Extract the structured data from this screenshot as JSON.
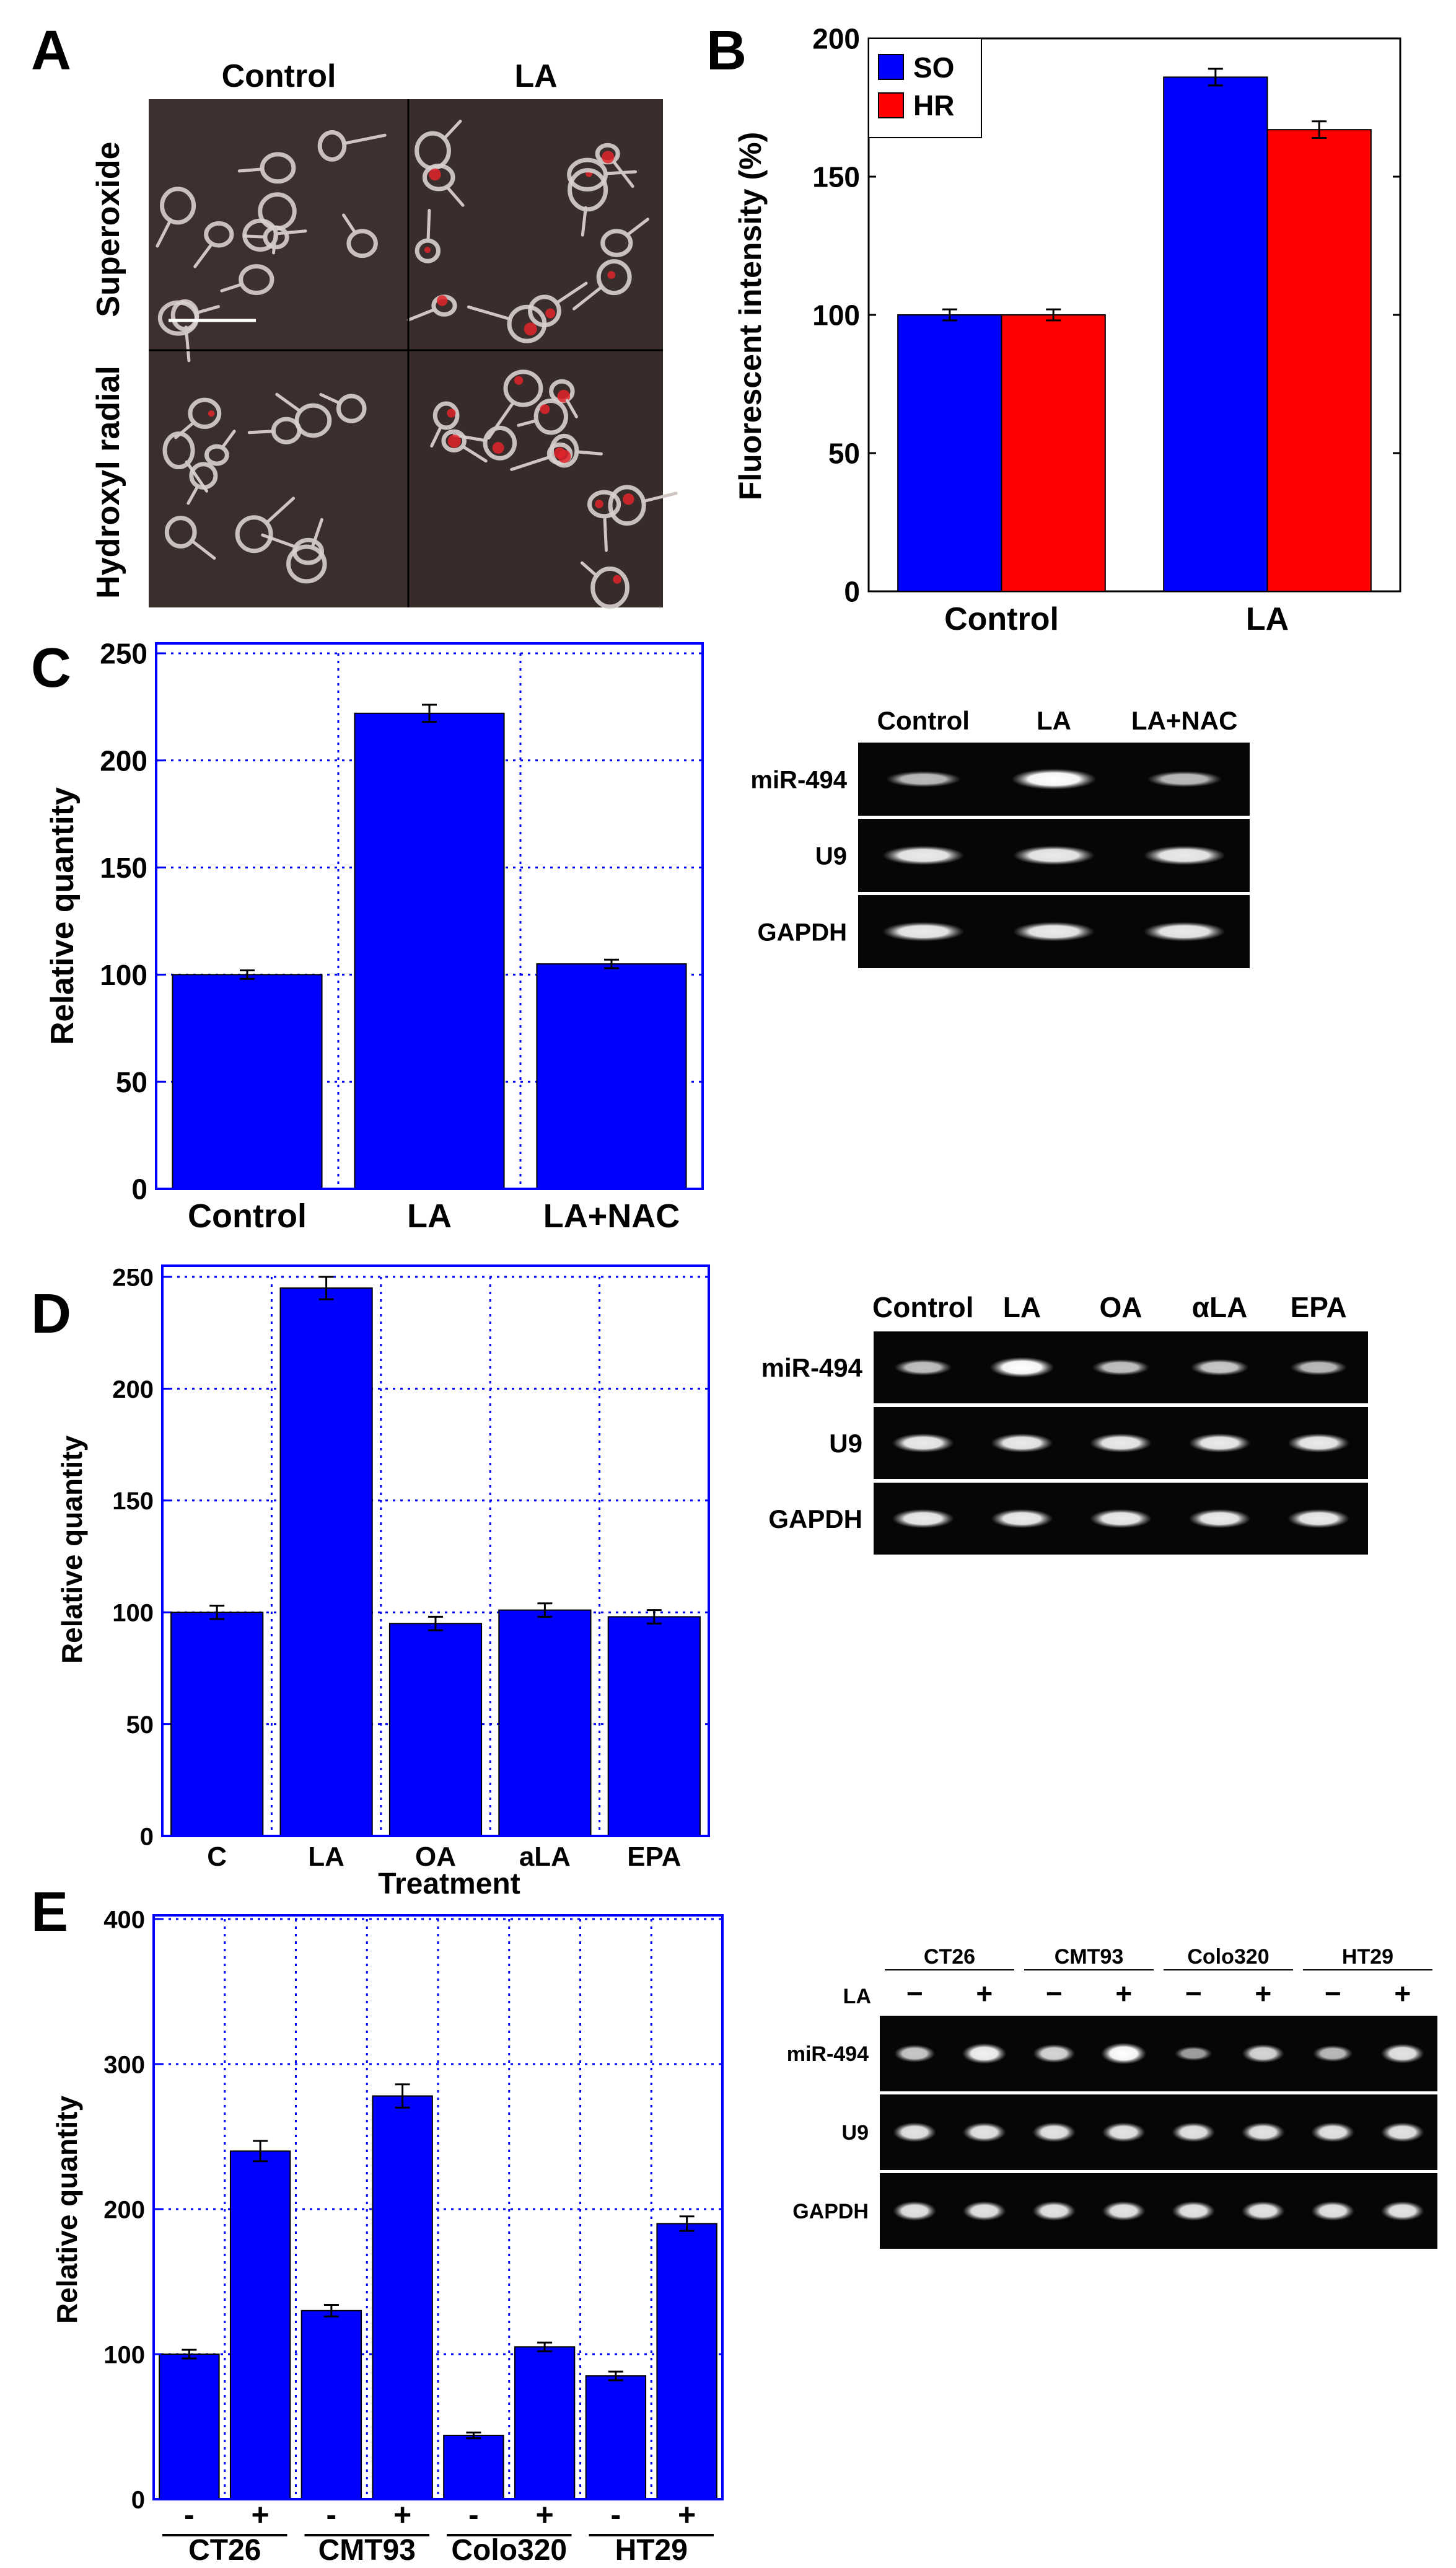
{
  "panel_letters": [
    "A",
    "B",
    "C",
    "D",
    "E"
  ],
  "panel_a": {
    "col_labels": [
      "Control",
      "LA"
    ],
    "row_labels": [
      "Superoxide",
      "Hydroxyl radial"
    ]
  },
  "chart_data": [
    {
      "panel": "B",
      "type": "bar",
      "title": "",
      "xlabel": "",
      "ylabel": "Fluorescent intensity (%)",
      "categories": [
        "Control",
        "LA"
      ],
      "series": [
        {
          "name": "SO",
          "color": "#0000FF",
          "values": [
            100,
            186
          ],
          "errors": [
            2,
            3
          ]
        },
        {
          "name": "HR",
          "color": "#FF0000",
          "values": [
            100,
            167
          ],
          "errors": [
            2,
            3
          ]
        }
      ],
      "ylim": [
        0,
        200
      ],
      "yticks": [
        0,
        50,
        100,
        150,
        200
      ],
      "grid": false,
      "legend": "top-left"
    },
    {
      "panel": "C",
      "type": "bar",
      "title": "",
      "xlabel": "",
      "ylabel": "Relative quantity",
      "categories": [
        "Control",
        "LA",
        "LA+NAC"
      ],
      "series": [
        {
          "name": "miR-494",
          "color": "#0000FF",
          "values": [
            100,
            222,
            105
          ],
          "errors": [
            2,
            4,
            2
          ]
        }
      ],
      "ylim": [
        0,
        250
      ],
      "yticks": [
        0,
        50,
        100,
        150,
        200,
        250
      ],
      "grid": true
    },
    {
      "panel": "D",
      "type": "bar",
      "title": "",
      "xlabel": "Treatment",
      "ylabel": "Relative quantity",
      "categories": [
        "C",
        "LA",
        "OA",
        "aLA",
        "EPA"
      ],
      "series": [
        {
          "name": "miR-494",
          "color": "#0000FF",
          "values": [
            100,
            245,
            95,
            101,
            98
          ],
          "errors": [
            3,
            5,
            3,
            3,
            3
          ]
        }
      ],
      "ylim": [
        0,
        250
      ],
      "yticks": [
        0,
        50,
        100,
        150,
        200,
        250
      ],
      "grid": true
    },
    {
      "panel": "E",
      "type": "bar",
      "title": "",
      "xlabel": "",
      "ylabel": "Relative quantity",
      "categories": [
        "-",
        "+",
        "-",
        "+",
        "-",
        "+",
        "-",
        "+"
      ],
      "groups": [
        "CT26",
        "CMT93",
        "Colo320",
        "HT29"
      ],
      "series": [
        {
          "name": "miR-494",
          "color": "#0000FF",
          "values": [
            100,
            240,
            130,
            278,
            44,
            105,
            85,
            190
          ],
          "errors": [
            3,
            7,
            4,
            8,
            2,
            3,
            3,
            5
          ]
        }
      ],
      "ylim": [
        0,
        400
      ],
      "yticks": [
        0,
        100,
        200,
        300,
        400
      ],
      "grid": true
    }
  ],
  "gels": {
    "c": {
      "lanes": [
        "Control",
        "LA",
        "LA+NAC"
      ],
      "rows": [
        "miR-494",
        "U9",
        "GAPDH"
      ],
      "bands": [
        [
          0.5,
          1.0,
          0.5
        ],
        [
          0.85,
          0.85,
          0.85
        ],
        [
          0.85,
          0.85,
          0.85
        ]
      ]
    },
    "d": {
      "lanes": [
        "Control",
        "LA",
        "OA",
        "αLA",
        "EPA"
      ],
      "rows": [
        "miR-494",
        "U9",
        "GAPDH"
      ],
      "bands": [
        [
          0.55,
          1.0,
          0.55,
          0.6,
          0.5
        ],
        [
          0.85,
          0.85,
          0.85,
          0.85,
          0.85
        ],
        [
          0.85,
          0.85,
          0.85,
          0.85,
          0.85
        ]
      ]
    },
    "e": {
      "groups": [
        "CT26",
        "CMT93",
        "Colo320",
        "HT29"
      ],
      "la_label": "LA",
      "lanes": [
        "−",
        "+",
        "−",
        "+",
        "−",
        "+",
        "−",
        "+"
      ],
      "rows": [
        "miR-494",
        "U9",
        "GAPDH"
      ],
      "bands": [
        [
          0.6,
          0.9,
          0.7,
          1.0,
          0.3,
          0.7,
          0.5,
          0.8
        ],
        [
          0.8,
          0.8,
          0.8,
          0.8,
          0.8,
          0.8,
          0.8,
          0.8
        ],
        [
          0.8,
          0.8,
          0.8,
          0.8,
          0.8,
          0.8,
          0.8,
          0.8
        ]
      ]
    }
  }
}
